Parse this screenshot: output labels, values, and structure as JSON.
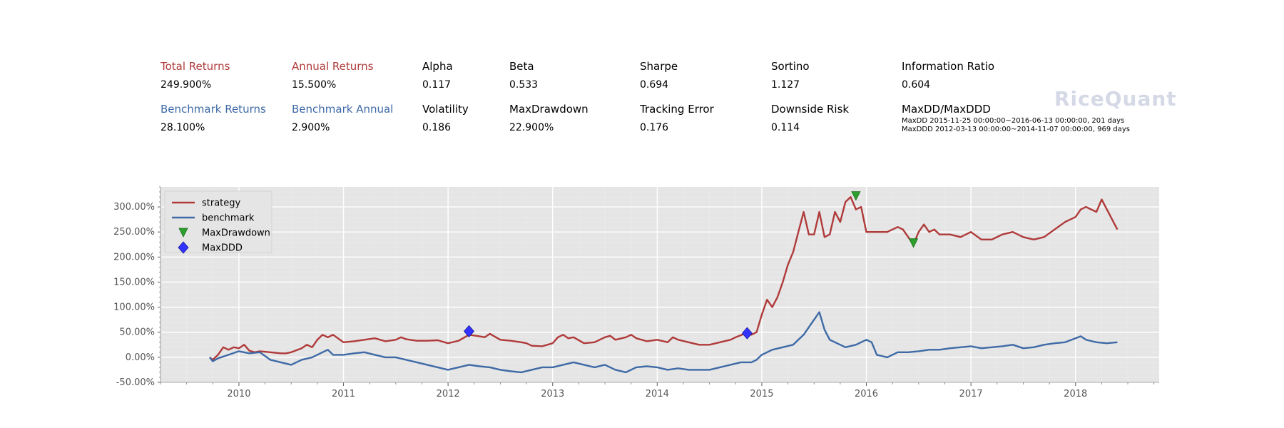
{
  "colors": {
    "strategy": "#b03a3a",
    "benchmark": "#3e6aa6",
    "maxdrawdown": "#2ca02c",
    "maxddd": "#3333ff",
    "label_black": "#000000",
    "plot_bg": "#e5e5e5"
  },
  "summary": {
    "row1": [
      {
        "label": "Total Returns",
        "value": "249.900%",
        "color": "#b03a3a"
      },
      {
        "label": "Annual Returns",
        "value": "15.500%",
        "color": "#b03a3a"
      },
      {
        "label": "Alpha",
        "value": "0.117",
        "color": "#000000"
      },
      {
        "label": "Beta",
        "value": "0.533",
        "color": "#000000"
      },
      {
        "label": "Sharpe",
        "value": "0.694",
        "color": "#000000"
      },
      {
        "label": "Sortino",
        "value": "1.127",
        "color": "#000000"
      },
      {
        "label": "Information Ratio",
        "value": "0.604",
        "color": "#000000"
      }
    ],
    "row2": [
      {
        "label": "Benchmark Returns",
        "value": "28.100%",
        "color": "#3e6aa6"
      },
      {
        "label": "Benchmark Annual",
        "value": "2.900%",
        "color": "#3e6aa6"
      },
      {
        "label": "Volatility",
        "value": "0.186",
        "color": "#000000"
      },
      {
        "label": "MaxDrawdown",
        "value": "22.900%",
        "color": "#000000"
      },
      {
        "label": "Tracking Error",
        "value": "0.176",
        "color": "#000000"
      },
      {
        "label": "Downside Risk",
        "value": "0.114",
        "color": "#000000"
      },
      {
        "label": "MaxDD/MaxDDD",
        "value": "",
        "color": "#000000"
      }
    ],
    "maxdd_line": "MaxDD  2015-11-25 00:00:00~2016-06-13 00:00:00, 201 days",
    "maxddd_line": "MaxDDD 2012-03-13 00:00:00~2014-11-07 00:00:00, 969 days"
  },
  "watermark": "RiceQuant",
  "chart_data": {
    "type": "line",
    "x_unit": "year",
    "xlim": [
      2009.25,
      2018.8
    ],
    "ylim": [
      -50,
      340
    ],
    "yticks": [
      -50,
      0,
      50,
      100,
      150,
      200,
      250,
      300
    ],
    "ytick_labels": [
      "-50.00%",
      "0.00%",
      "50.00%",
      "100.00%",
      "150.00%",
      "200.00%",
      "250.00%",
      "300.00%"
    ],
    "xticks": [
      2010,
      2011,
      2012,
      2013,
      2014,
      2015,
      2016,
      2017,
      2018
    ],
    "xtick_labels": [
      "2010",
      "2011",
      "2012",
      "2013",
      "2014",
      "2015",
      "2016",
      "2017",
      "2018"
    ],
    "grid": true,
    "legend_position": "top-left",
    "legend": [
      "strategy",
      "benchmark",
      "MaxDrawdown",
      "MaxDDD"
    ],
    "series": [
      {
        "name": "strategy",
        "x": [
          2009.72,
          2009.75,
          2009.8,
          2009.85,
          2009.9,
          2009.95,
          2010.0,
          2010.05,
          2010.1,
          2010.15,
          2010.2,
          2010.3,
          2010.4,
          2010.45,
          2010.5,
          2010.6,
          2010.65,
          2010.7,
          2010.75,
          2010.8,
          2010.85,
          2010.9,
          2011.0,
          2011.1,
          2011.2,
          2011.3,
          2011.4,
          2011.5,
          2011.55,
          2011.6,
          2011.7,
          2011.8,
          2011.9,
          2012.0,
          2012.1,
          2012.2,
          2012.3,
          2012.35,
          2012.4,
          2012.5,
          2012.6,
          2012.7,
          2012.75,
          2012.8,
          2012.9,
          2013.0,
          2013.05,
          2013.1,
          2013.15,
          2013.2,
          2013.3,
          2013.4,
          2013.5,
          2013.55,
          2013.6,
          2013.7,
          2013.75,
          2013.8,
          2013.9,
          2014.0,
          2014.1,
          2014.15,
          2014.2,
          2014.3,
          2014.4,
          2014.5,
          2014.6,
          2014.7,
          2014.75,
          2014.85,
          2014.9,
          2014.95,
          2015.0,
          2015.05,
          2015.1,
          2015.15,
          2015.2,
          2015.25,
          2015.3,
          2015.35,
          2015.4,
          2015.45,
          2015.5,
          2015.55,
          2015.6,
          2015.65,
          2015.7,
          2015.75,
          2015.8,
          2015.85,
          2015.9,
          2015.95,
          2016.0,
          2016.1,
          2016.2,
          2016.3,
          2016.35,
          2016.4,
          2016.45,
          2016.5,
          2016.55,
          2016.6,
          2016.65,
          2016.7,
          2016.8,
          2016.9,
          2017.0,
          2017.1,
          2017.2,
          2017.3,
          2017.4,
          2017.5,
          2017.6,
          2017.7,
          2017.8,
          2017.9,
          2018.0,
          2018.05,
          2018.1,
          2018.2,
          2018.25,
          2018.3,
          2018.4
        ],
        "values": [
          0,
          -5,
          5,
          20,
          15,
          20,
          18,
          25,
          13,
          10,
          12,
          10,
          8,
          8,
          10,
          18,
          25,
          20,
          35,
          45,
          40,
          45,
          30,
          32,
          35,
          38,
          32,
          35,
          40,
          36,
          33,
          33,
          34,
          28,
          33,
          45,
          42,
          40,
          47,
          35,
          33,
          30,
          28,
          23,
          22,
          28,
          40,
          45,
          38,
          40,
          28,
          30,
          40,
          43,
          35,
          40,
          45,
          38,
          32,
          35,
          30,
          40,
          35,
          30,
          25,
          25,
          30,
          35,
          40,
          48,
          45,
          50,
          85,
          115,
          100,
          120,
          150,
          185,
          210,
          250,
          290,
          245,
          245,
          290,
          240,
          245,
          290,
          270,
          310,
          320,
          295,
          300,
          250,
          250,
          250,
          260,
          255,
          240,
          225,
          250,
          265,
          250,
          255,
          245,
          245,
          240,
          250,
          235,
          235,
          245,
          250,
          240,
          235,
          240,
          255,
          270,
          280,
          295,
          300,
          290,
          315,
          295,
          255
        ]
      },
      {
        "name": "benchmark",
        "x": [
          2009.72,
          2009.75,
          2009.8,
          2009.9,
          2010.0,
          2010.1,
          2010.2,
          2010.3,
          2010.4,
          2010.5,
          2010.6,
          2010.7,
          2010.8,
          2010.85,
          2010.9,
          2011.0,
          2011.1,
          2011.2,
          2011.3,
          2011.4,
          2011.5,
          2011.6,
          2011.7,
          2011.8,
          2011.9,
          2012.0,
          2012.1,
          2012.2,
          2012.3,
          2012.4,
          2012.5,
          2012.6,
          2012.7,
          2012.8,
          2012.9,
          2013.0,
          2013.1,
          2013.2,
          2013.3,
          2013.4,
          2013.5,
          2013.6,
          2013.7,
          2013.8,
          2013.9,
          2014.0,
          2014.1,
          2014.2,
          2014.3,
          2014.4,
          2014.5,
          2014.6,
          2014.7,
          2014.8,
          2014.9,
          2014.95,
          2015.0,
          2015.1,
          2015.2,
          2015.3,
          2015.35,
          2015.4,
          2015.45,
          2015.5,
          2015.55,
          2015.6,
          2015.65,
          2015.7,
          2015.8,
          2015.9,
          2016.0,
          2016.05,
          2016.1,
          2016.2,
          2016.3,
          2016.4,
          2016.5,
          2016.6,
          2016.7,
          2016.8,
          2016.9,
          2017.0,
          2017.1,
          2017.2,
          2017.3,
          2017.4,
          2017.5,
          2017.6,
          2017.7,
          2017.8,
          2017.9,
          2018.0,
          2018.05,
          2018.1,
          2018.2,
          2018.3,
          2018.4
        ],
        "values": [
          0,
          -8,
          -2,
          5,
          12,
          8,
          10,
          -5,
          -10,
          -15,
          -5,
          0,
          10,
          15,
          5,
          5,
          8,
          10,
          5,
          0,
          0,
          -5,
          -10,
          -15,
          -20,
          -25,
          -20,
          -15,
          -18,
          -20,
          -25,
          -28,
          -30,
          -25,
          -20,
          -20,
          -15,
          -10,
          -15,
          -20,
          -15,
          -25,
          -30,
          -20,
          -18,
          -20,
          -25,
          -22,
          -25,
          -25,
          -25,
          -20,
          -15,
          -10,
          -10,
          -5,
          5,
          15,
          20,
          25,
          35,
          45,
          60,
          75,
          90,
          55,
          35,
          30,
          20,
          25,
          35,
          30,
          5,
          0,
          10,
          10,
          12,
          15,
          15,
          18,
          20,
          22,
          18,
          20,
          22,
          25,
          18,
          20,
          25,
          28,
          30,
          38,
          42,
          35,
          30,
          28,
          30
        ]
      }
    ],
    "markers": [
      {
        "name": "MaxDrawdown",
        "points": [
          {
            "x": 2015.9,
            "y": 322
          },
          {
            "x": 2016.45,
            "y": 228
          }
        ]
      },
      {
        "name": "MaxDDD",
        "points": [
          {
            "x": 2012.2,
            "y": 52
          },
          {
            "x": 2014.86,
            "y": 48
          }
        ]
      }
    ]
  }
}
